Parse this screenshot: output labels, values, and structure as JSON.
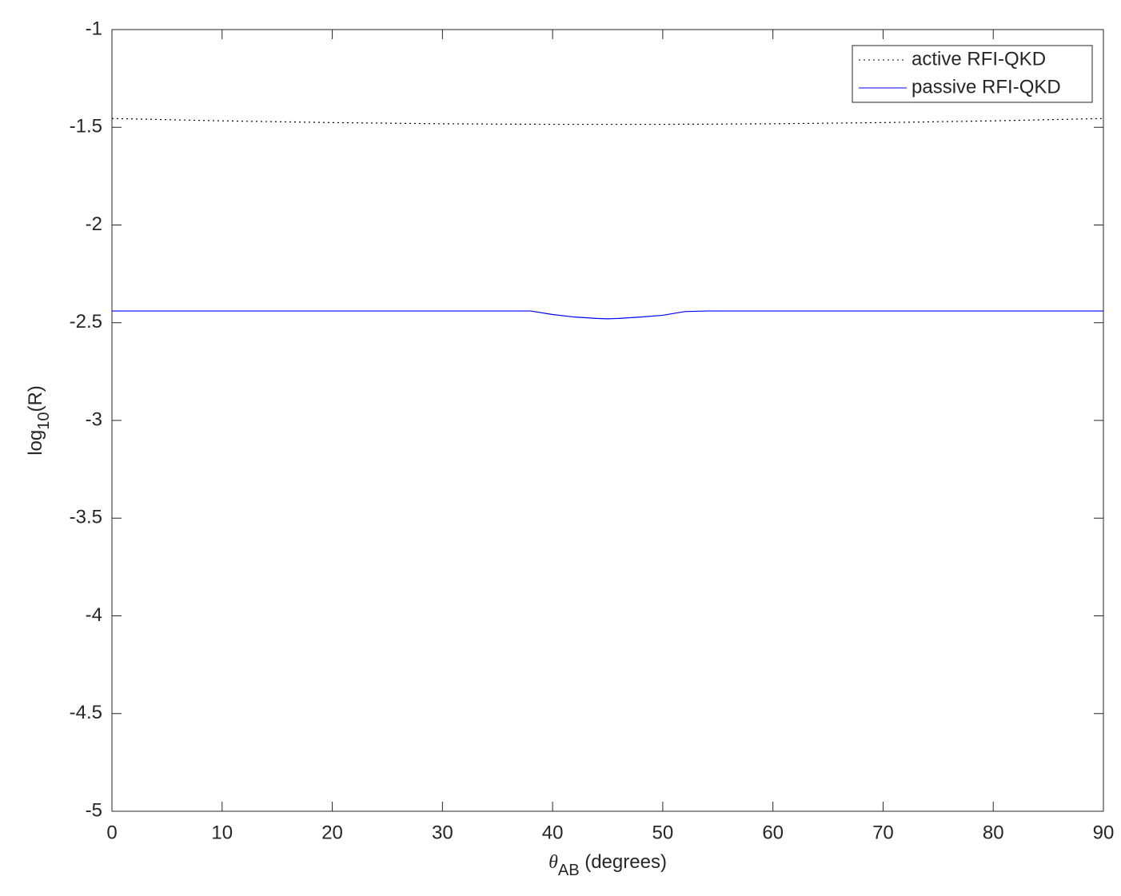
{
  "chart_data": {
    "type": "line",
    "xlabel": [
      "θ",
      "AB",
      " (degrees)"
    ],
    "ylabel": [
      "log",
      "10",
      "(R)"
    ],
    "x": [
      0,
      10,
      20,
      30,
      36,
      38,
      40,
      42,
      44,
      45,
      46,
      48,
      50,
      52,
      54,
      60,
      70,
      80,
      90
    ],
    "series": [
      {
        "name": "active RFI-QKD",
        "color": "#000000",
        "linestyle": "dotted",
        "values": [
          -1.455,
          -1.467,
          -1.476,
          -1.482,
          -1.484,
          -1.484,
          -1.485,
          -1.485,
          -1.485,
          -1.485,
          -1.485,
          -1.485,
          -1.485,
          -1.484,
          -1.484,
          -1.482,
          -1.476,
          -1.467,
          -1.455
        ]
      },
      {
        "name": "passive RFI-QKD",
        "color": "#0000ff",
        "linestyle": "solid",
        "values": [
          -2.44,
          -2.44,
          -2.44,
          -2.44,
          -2.44,
          -2.44,
          -2.458,
          -2.471,
          -2.478,
          -2.48,
          -2.478,
          -2.471,
          -2.462,
          -2.443,
          -2.44,
          -2.44,
          -2.44,
          -2.44,
          -2.44
        ]
      }
    ],
    "xlim": [
      0,
      90
    ],
    "xticks": [
      0,
      10,
      20,
      30,
      40,
      50,
      60,
      70,
      80,
      90
    ],
    "ylim": [
      -5,
      -1
    ],
    "yticks": [
      -5,
      -4.5,
      -4,
      -3.5,
      -3,
      -2.5,
      -2,
      -1.5,
      -1
    ],
    "legend": "northeast"
  }
}
